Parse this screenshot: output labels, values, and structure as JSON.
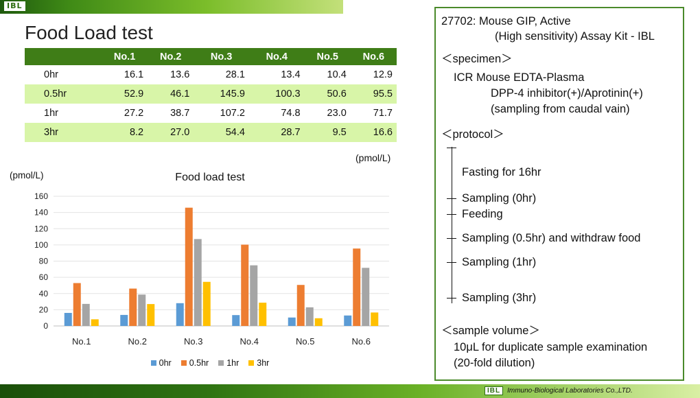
{
  "brand": {
    "logo_text": "IBL"
  },
  "page_title": "Food Load test",
  "table": {
    "columns": [
      "",
      "No.1",
      "No.2",
      "No.3",
      "No.4",
      "No.5",
      "No.6"
    ],
    "rows": [
      [
        "0hr",
        "16.1",
        "13.6",
        "28.1",
        "13.4",
        "10.4",
        "12.9"
      ],
      [
        "0.5hr",
        "52.9",
        "46.1",
        "145.9",
        "100.3",
        "50.6",
        "95.5"
      ],
      [
        "1hr",
        "27.2",
        "38.7",
        "107.2",
        "74.8",
        "23.0",
        "71.7"
      ],
      [
        "3hr",
        "8.2",
        "27.0",
        "54.4",
        "28.7",
        "9.5",
        "16.6"
      ]
    ],
    "unit": "(pmol/L)"
  },
  "chart_data": {
    "type": "bar",
    "title": "Food load test",
    "ylabel": "(pmol/L)",
    "xlabel": "",
    "categories": [
      "No.1",
      "No.2",
      "No.3",
      "No.4",
      "No.5",
      "No.6"
    ],
    "series": [
      {
        "name": "0hr",
        "color": "#5b9bd5",
        "values": [
          16.1,
          13.6,
          28.1,
          13.4,
          10.4,
          12.9
        ]
      },
      {
        "name": "0.5hr",
        "color": "#ed7d31",
        "values": [
          52.9,
          46.1,
          145.9,
          100.3,
          50.6,
          95.5
        ]
      },
      {
        "name": "1hr",
        "color": "#a5a5a5",
        "values": [
          27.2,
          38.7,
          107.2,
          74.8,
          23.0,
          71.7
        ]
      },
      {
        "name": "3hr",
        "color": "#ffc000",
        "values": [
          8.2,
          27.0,
          54.4,
          28.7,
          9.5,
          16.6
        ]
      }
    ],
    "ylim": [
      0,
      160
    ],
    "yticks": [
      0,
      20,
      40,
      60,
      80,
      100,
      120,
      140,
      160
    ],
    "grid": true,
    "legend": "bottom"
  },
  "info": {
    "kit_line1": "27702: Mouse GIP, Active",
    "kit_line2": "(High sensitivity) Assay Kit - IBL",
    "specimen_heading": "＜specimen＞",
    "specimen_line1": "ICR Mouse EDTA-Plasma",
    "specimen_line2": "DPP-4 inhibitor(+)/Aprotinin(+)",
    "specimen_line3": "(sampling from caudal vain)",
    "protocol_heading": "＜protocol＞",
    "protocol_steps": [
      "Fasting for 16hr",
      "Sampling (0hr)",
      "Feeding",
      "Sampling (0.5hr) and withdraw food",
      "Sampling (1hr)",
      "Sampling (3hr)"
    ],
    "volume_heading": "＜sample volume＞",
    "volume_line1": "10μL for duplicate sample examination",
    "volume_line2": "(20-fold dilution)"
  },
  "footer": {
    "logo_text": "IBL",
    "company": "Immuno-Biological Laboratories Co.,LTD."
  }
}
